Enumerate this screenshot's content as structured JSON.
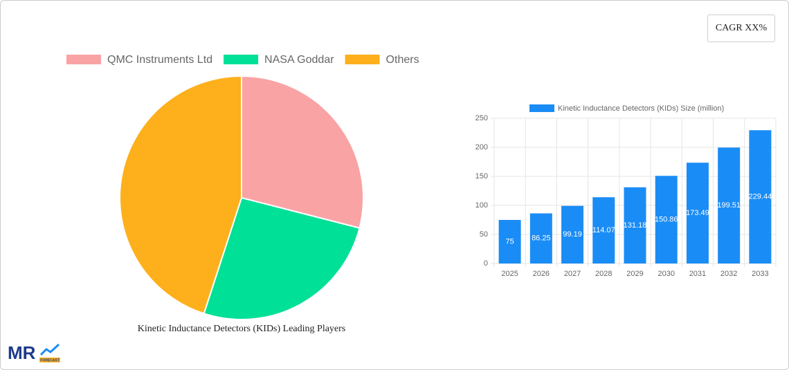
{
  "cagr_label": "CAGR XX%",
  "logo": {
    "text": "MR",
    "sub": "FORECAST"
  },
  "chart_data": [
    {
      "type": "pie",
      "title": "Kinetic Inductance Detectors (KIDs) Leading Players",
      "categories": [
        "QMC Instruments Ltd",
        "NASA Goddar",
        "Others"
      ],
      "values": [
        29,
        26,
        45
      ],
      "colors": [
        "#f9a3a4",
        "#00e096",
        "#fdb01b"
      ],
      "legend": "top"
    },
    {
      "type": "bar",
      "categories": [
        "2025",
        "2026",
        "2027",
        "2028",
        "2029",
        "2030",
        "2031",
        "2032",
        "2033"
      ],
      "series": [
        {
          "name": "Kinetic Inductance Detectors (KIDs) Size (million)",
          "color": "#1a8cf5",
          "values": [
            75,
            86.25,
            99.19,
            114.07,
            131.18,
            150.86,
            173.49,
            199.51,
            229.44
          ]
        }
      ],
      "ylim": [
        0,
        250
      ],
      "yticks": [
        0,
        50,
        100,
        150,
        200,
        250
      ],
      "grid": true,
      "legend": "top"
    }
  ]
}
